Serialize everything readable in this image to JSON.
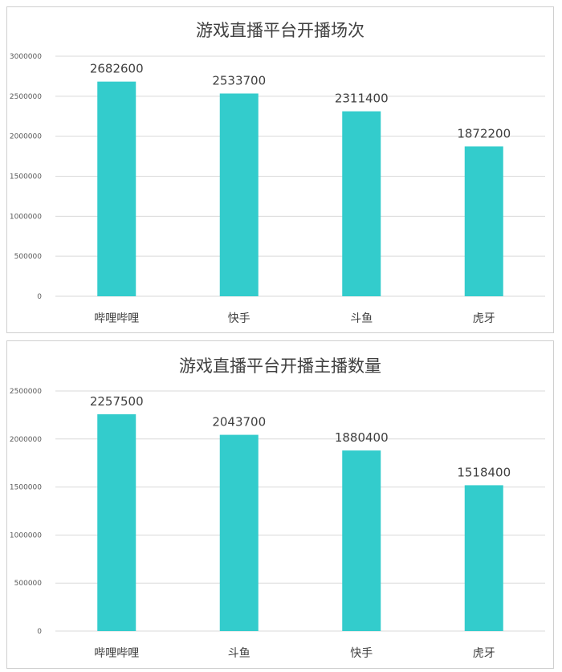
{
  "colors": {
    "bar": "#33CCCC",
    "grid": "#D9D9D9",
    "text": "#404040"
  },
  "chart_data": [
    {
      "type": "bar",
      "title": "游戏直播平台开播场次",
      "categories": [
        "哔哩哔哩",
        "快手",
        "斗鱼",
        "虎牙"
      ],
      "values": [
        2682600,
        2533700,
        2311400,
        1872200
      ],
      "data_labels": [
        "2682600",
        "2533700",
        "2311400",
        "1872200"
      ],
      "ylim": [
        0,
        3000000
      ],
      "yticks": [
        0,
        500000,
        1000000,
        1500000,
        2000000,
        2500000,
        3000000
      ],
      "ytick_labels": [
        "0",
        "500000",
        "1000000",
        "1500000",
        "2000000",
        "2500000",
        "3000000"
      ],
      "xlabel": "",
      "ylabel": "",
      "grid": true,
      "legend": "none"
    },
    {
      "type": "bar",
      "title": "游戏直播平台开播主播数量",
      "categories": [
        "哔哩哔哩",
        "斗鱼",
        "快手",
        "虎牙"
      ],
      "values": [
        2257500,
        2043700,
        1880400,
        1518400
      ],
      "data_labels": [
        "2257500",
        "2043700",
        "1880400",
        "1518400"
      ],
      "ylim": [
        0,
        2500000
      ],
      "yticks": [
        0,
        500000,
        1000000,
        1500000,
        2000000,
        2500000
      ],
      "ytick_labels": [
        "0",
        "500000",
        "1000000",
        "1500000",
        "2000000",
        "2500000"
      ],
      "xlabel": "",
      "ylabel": "",
      "grid": true,
      "legend": "none"
    }
  ]
}
